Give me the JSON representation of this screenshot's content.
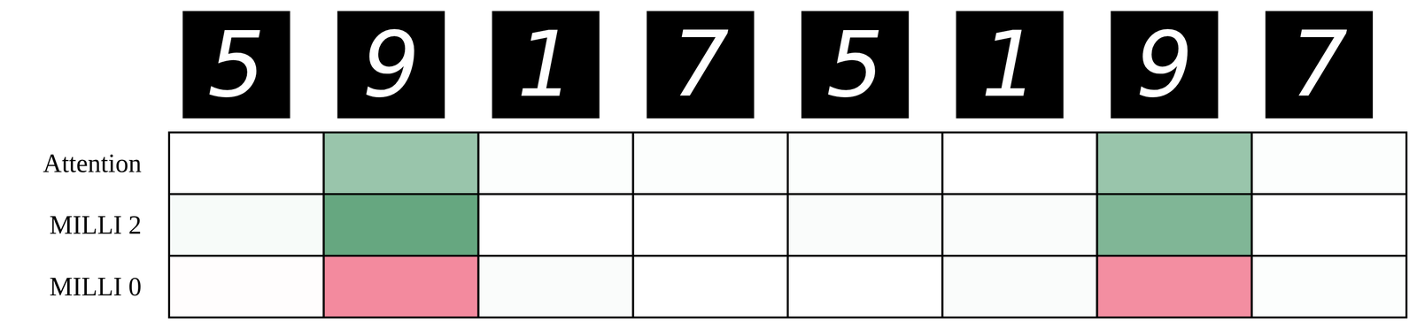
{
  "chart_data": {
    "type": "heatmap",
    "columns": [
      5,
      9,
      1,
      7,
      5,
      1,
      9,
      7
    ],
    "rows": [
      "Attention",
      "MILLI 2",
      "MILLI 0"
    ],
    "cells": [
      [
        0.0,
        0.4,
        0.01,
        0.01,
        0.01,
        0.0,
        0.4,
        0.01
      ],
      [
        0.03,
        0.6,
        0.0,
        0.0,
        0.02,
        0.02,
        0.5,
        0.0
      ],
      [
        -0.01,
        -0.5,
        0.02,
        0.0,
        0.0,
        0.02,
        -0.48,
        0.01
      ]
    ],
    "zlim": [
      -1,
      1
    ]
  }
}
